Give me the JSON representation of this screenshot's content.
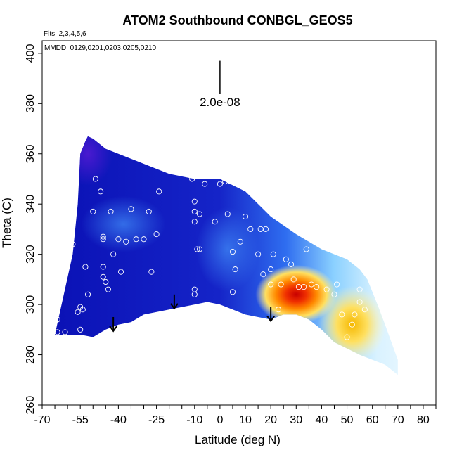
{
  "chart_data": {
    "type": "heatmap",
    "title": "ATOM2 Southbound CONBGL_GEOS5",
    "xlabel": "Latitude (deg N)",
    "ylabel": "Theta (C)",
    "flights_note": "Flts: 2,3,4,5,6",
    "dates_note": "MMDD: 0129,0201,0203,0205,0210",
    "scale_label": "2.0e-08",
    "xlim": [
      -70,
      85
    ],
    "ylim": [
      260,
      405
    ],
    "x_ticks": [
      -70,
      -65,
      -60,
      -55,
      -50,
      -45,
      -40,
      -35,
      -30,
      -25,
      -20,
      -15,
      -10,
      -5,
      0,
      5,
      10,
      15,
      20,
      25,
      30,
      35,
      40,
      45,
      50,
      55,
      60,
      65,
      70,
      75,
      80,
      85
    ],
    "x_tick_labels": [
      "-70",
      "-55",
      "-40",
      "-25",
      "-10",
      "0",
      "10",
      "20",
      "30",
      "40",
      "50",
      "60",
      "70",
      "80"
    ],
    "x_tick_label_values": [
      -70,
      -55,
      -40,
      -25,
      -10,
      0,
      10,
      20,
      30,
      40,
      50,
      60,
      70,
      80
    ],
    "y_ticks": [
      260,
      280,
      300,
      320,
      340,
      360,
      380,
      400
    ],
    "y_tick_labels": [
      "260",
      "280",
      "300",
      "320",
      "340",
      "360",
      "380",
      "400"
    ],
    "field_outline": {
      "lat": [
        -65,
        -58,
        -56,
        -55,
        -53,
        -52,
        -50,
        -45,
        -40,
        -35,
        -30,
        -20,
        -10,
        0,
        10,
        20,
        30,
        40,
        50,
        55,
        58,
        62,
        65,
        70,
        70,
        65,
        55,
        45,
        40,
        35,
        30,
        25,
        20,
        15,
        10,
        5,
        0,
        -5,
        -10,
        -20,
        -30,
        -35,
        -40,
        -45,
        -50,
        -55,
        -65
      ],
      "theta": [
        288,
        320,
        340,
        360,
        365,
        367,
        366,
        362,
        360,
        358,
        356,
        352,
        350,
        350,
        345,
        335,
        328,
        322,
        318,
        314,
        310,
        300,
        292,
        278,
        272,
        276,
        280,
        285,
        290,
        294,
        296,
        296,
        294,
        295,
        296,
        298,
        300,
        301,
        300,
        298,
        296,
        293,
        292,
        290,
        287,
        288,
        288
      ]
    },
    "hotspots": [
      {
        "lat": 30,
        "theta": 304,
        "level": "max"
      },
      {
        "lat": 52,
        "theta": 292,
        "level": "high"
      }
    ],
    "arrows": [
      {
        "lat": -42,
        "theta": 295
      },
      {
        "lat": -18,
        "theta": 304
      },
      {
        "lat": 20,
        "theta": 299
      }
    ],
    "samples": [
      {
        "lat": -64,
        "theta": 289
      },
      {
        "lat": -64,
        "theta": 294
      },
      {
        "lat": -61,
        "theta": 289
      },
      {
        "lat": -58,
        "theta": 324
      },
      {
        "lat": -56,
        "theta": 297
      },
      {
        "lat": -55,
        "theta": 299
      },
      {
        "lat": -54,
        "theta": 298
      },
      {
        "lat": -55,
        "theta": 290
      },
      {
        "lat": -53,
        "theta": 315
      },
      {
        "lat": -52,
        "theta": 304
      },
      {
        "lat": -50,
        "theta": 337
      },
      {
        "lat": -49,
        "theta": 350
      },
      {
        "lat": -47,
        "theta": 345
      },
      {
        "lat": -46,
        "theta": 327
      },
      {
        "lat": -46,
        "theta": 326
      },
      {
        "lat": -46,
        "theta": 315
      },
      {
        "lat": -46,
        "theta": 311
      },
      {
        "lat": -45,
        "theta": 309
      },
      {
        "lat": -44,
        "theta": 306
      },
      {
        "lat": -43,
        "theta": 337
      },
      {
        "lat": -42,
        "theta": 320
      },
      {
        "lat": -40,
        "theta": 326
      },
      {
        "lat": -39,
        "theta": 313
      },
      {
        "lat": -37,
        "theta": 325
      },
      {
        "lat": -35,
        "theta": 338
      },
      {
        "lat": -33,
        "theta": 326
      },
      {
        "lat": -30,
        "theta": 326
      },
      {
        "lat": -28,
        "theta": 337
      },
      {
        "lat": -27,
        "theta": 313
      },
      {
        "lat": -25,
        "theta": 328
      },
      {
        "lat": -24,
        "theta": 345
      },
      {
        "lat": -11,
        "theta": 350
      },
      {
        "lat": -10,
        "theta": 341
      },
      {
        "lat": -10,
        "theta": 337
      },
      {
        "lat": -10,
        "theta": 333
      },
      {
        "lat": -9,
        "theta": 322
      },
      {
        "lat": -8,
        "theta": 336
      },
      {
        "lat": -8,
        "theta": 322
      },
      {
        "lat": -10,
        "theta": 306
      },
      {
        "lat": -10,
        "theta": 304
      },
      {
        "lat": -6,
        "theta": 348
      },
      {
        "lat": -2,
        "theta": 333
      },
      {
        "lat": 0,
        "theta": 348
      },
      {
        "lat": 2,
        "theta": 349
      },
      {
        "lat": 3,
        "theta": 336
      },
      {
        "lat": 4,
        "theta": 349
      },
      {
        "lat": 5,
        "theta": 321
      },
      {
        "lat": 5,
        "theta": 305
      },
      {
        "lat": 6,
        "theta": 314
      },
      {
        "lat": 8,
        "theta": 325
      },
      {
        "lat": 10,
        "theta": 335
      },
      {
        "lat": 12,
        "theta": 330
      },
      {
        "lat": 14,
        "theta": 348
      },
      {
        "lat": 15,
        "theta": 320
      },
      {
        "lat": 16,
        "theta": 330
      },
      {
        "lat": 17,
        "theta": 312
      },
      {
        "lat": 18,
        "theta": 330
      },
      {
        "lat": 20,
        "theta": 314
      },
      {
        "lat": 20,
        "theta": 308
      },
      {
        "lat": 21,
        "theta": 320
      },
      {
        "lat": 23,
        "theta": 298
      },
      {
        "lat": 24,
        "theta": 308
      },
      {
        "lat": 26,
        "theta": 318
      },
      {
        "lat": 28,
        "theta": 316
      },
      {
        "lat": 29,
        "theta": 310
      },
      {
        "lat": 31,
        "theta": 307
      },
      {
        "lat": 33,
        "theta": 307
      },
      {
        "lat": 34,
        "theta": 322
      },
      {
        "lat": 36,
        "theta": 308
      },
      {
        "lat": 38,
        "theta": 307
      },
      {
        "lat": 42,
        "theta": 306
      },
      {
        "lat": 45,
        "theta": 304
      },
      {
        "lat": 46,
        "theta": 308
      },
      {
        "lat": 48,
        "theta": 296
      },
      {
        "lat": 50,
        "theta": 287
      },
      {
        "lat": 52,
        "theta": 292
      },
      {
        "lat": 53,
        "theta": 296
      },
      {
        "lat": 55,
        "theta": 301
      },
      {
        "lat": 55,
        "theta": 306
      },
      {
        "lat": 57,
        "theta": 298
      }
    ]
  }
}
